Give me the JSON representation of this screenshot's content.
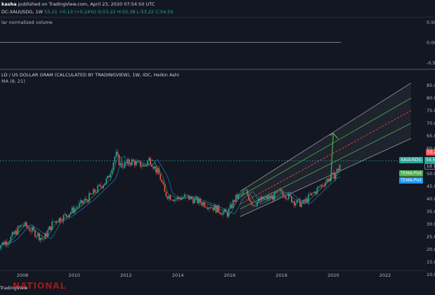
{
  "header": {
    "author": "kasha",
    "published": "published on TradingView.com, April 23, 2020 07:54:50 UTC",
    "symbol": "DC:XAUUSDG, 1W",
    "last": "55.21",
    "change": "+0.13 (+0.24%)",
    "ohlc": "O:53.22 H:55.38 L:53.22 C:54.50"
  },
  "volume_pane": {
    "title": "lar normalized volume",
    "ticks": [
      "0.50",
      "0.00",
      "-0.50"
    ]
  },
  "main_pane": {
    "title": "LD / US DOLLAR GRAM (CALCULATED BY TRADINGVIEW), 1W, IDC, Heikin Ashi",
    "indicator": "MA (8, 21)",
    "y_ticks": [
      "85.0",
      "80.0",
      "75.0",
      "70.0",
      "65.0",
      "60.0",
      "55.0",
      "50.0",
      "45.0",
      "40.0",
      "35.0",
      "30.0",
      "25.0",
      "20.0",
      "15.0",
      "10.0"
    ],
    "x_ticks": [
      "2008",
      "2010",
      "2012",
      "2014",
      "2016",
      "2018",
      "2020",
      "2022"
    ],
    "price_tags": {
      "last": "55.2",
      "symbol": "XAUUSDG",
      "symbol_value": "54.5",
      "countdown": "1d 1",
      "tema1": "TEMA:Plot",
      "tema2": "TEMA:Plot"
    }
  },
  "footer": {
    "brand": "TradingView",
    "watermark": "NATIONAL"
  },
  "colors": {
    "background": "#131722",
    "up": "#26a69a",
    "down": "#ef5350",
    "channel_outer": "#9598a1",
    "channel_inner": "#4caf50",
    "channel_mid": "#ef5350",
    "tema1": "#4caf50",
    "tema2": "#2196f3"
  },
  "chart_data": {
    "type": "line",
    "title": "LD / US DOLLAR GRAM (CALCULATED BY TRADINGVIEW), 1W, IDC, Heikin Ashi",
    "xlabel": "",
    "ylabel": "",
    "ylim": [
      10,
      87
    ],
    "xlim": [
      2007.0,
      2023.5
    ],
    "series": [
      {
        "x": [
          2007.0,
          2007.5,
          2008.0,
          2008.3,
          2008.8,
          2009.2,
          2009.6,
          2010.0,
          2010.5,
          2010.9,
          2011.3,
          2011.6,
          2011.8,
          2012.2,
          2012.7,
          2012.9,
          2013.3,
          2013.5,
          2013.9,
          2014.3,
          2014.8,
          2015.3,
          2015.9,
          2016.2,
          2016.6,
          2016.9,
          2017.3,
          2017.7,
          2018.0,
          2018.5,
          2018.8,
          2019.2,
          2019.5,
          2019.8,
          2020.0,
          2020.2,
          2020.3
        ],
        "values": [
          21,
          24,
          30,
          28,
          24,
          31,
          33,
          36,
          40,
          44,
          48,
          58,
          53,
          55,
          53,
          56,
          49,
          42,
          40,
          41,
          39,
          37,
          34,
          40,
          43,
          38,
          40,
          41,
          43,
          39,
          38,
          42,
          45,
          48,
          49,
          52,
          55
        ]
      }
    ],
    "channel": {
      "x": [
        2016.4,
        2023.0
      ],
      "upper": [
        43,
        86
      ],
      "inner_upper": [
        41,
        80
      ],
      "mid": [
        38,
        75
      ],
      "inner_lower": [
        36,
        70
      ],
      "lower": [
        33,
        64
      ]
    },
    "arrow": {
      "x": [
        2019.9,
        2020.0
      ],
      "y": [
        47,
        66
      ]
    }
  }
}
